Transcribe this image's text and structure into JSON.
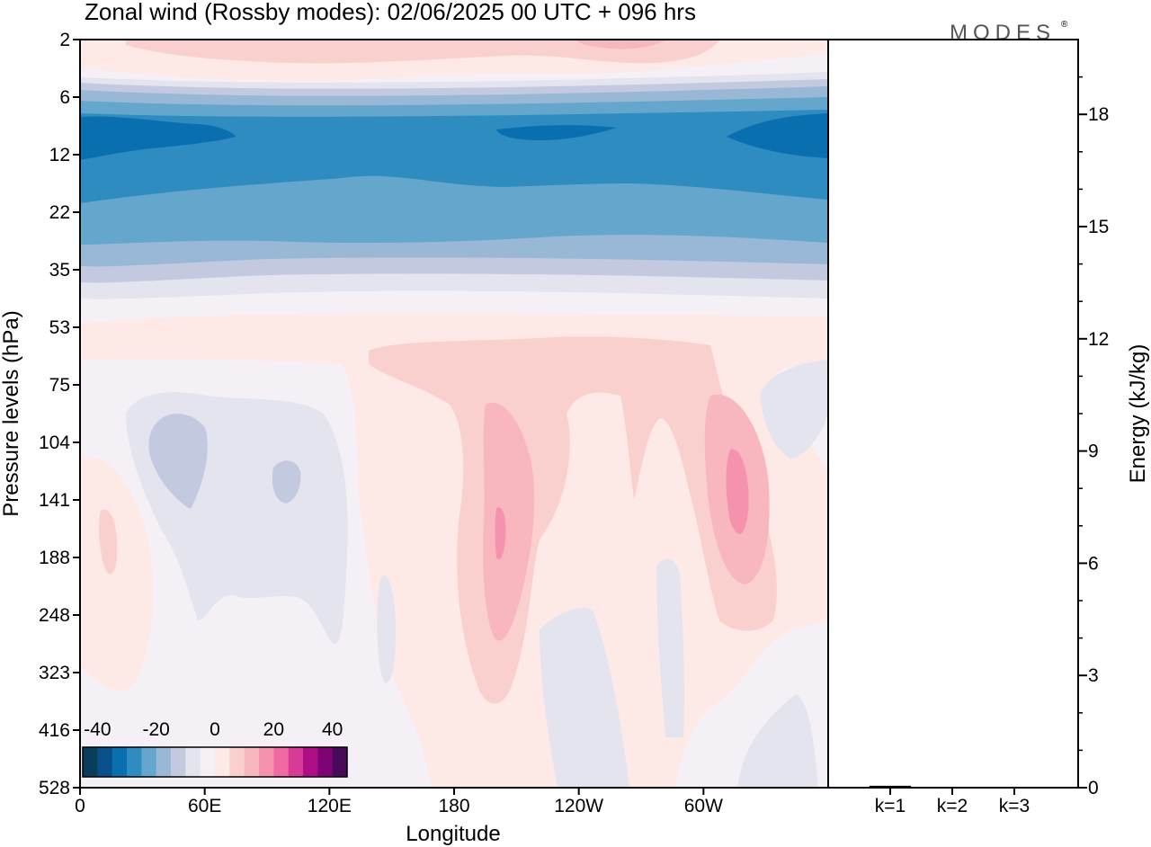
{
  "chart_data": {
    "type": "contour",
    "title": "Zonal wind (Rossby modes):  02/06/2025  00 UTC  + 096 hrs",
    "logo": "MODES",
    "logo_mark": "®",
    "xlabel": "Longitude",
    "ylabel": "Pressure levels (hPa)",
    "x_ticks": [
      "0",
      "60E",
      "120E",
      "180",
      "120W",
      "60W"
    ],
    "y_ticks": [
      "2",
      "6",
      "12",
      "22",
      "35",
      "53",
      "75",
      "104",
      "141",
      "188",
      "248",
      "323",
      "416",
      "528"
    ],
    "colorbar": {
      "ticks": [
        "-40",
        "-20",
        "0",
        "20",
        "40"
      ],
      "levels": [
        -45,
        -40,
        -35,
        -30,
        -25,
        -20,
        -15,
        -10,
        -5,
        0,
        5,
        10,
        15,
        20,
        25,
        30,
        35,
        40,
        45
      ],
      "colors": [
        "#083d5c",
        "#07508a",
        "#0a6fae",
        "#2f8cc1",
        "#64a6cc",
        "#98b8d6",
        "#c3cae0",
        "#e4e4ef",
        "#f5f0f6",
        "#fde9e6",
        "#fad0cf",
        "#f8b6be",
        "#f593ae",
        "#ef6aa2",
        "#d83a97",
        "#ae0f86",
        "#7e0475",
        "#4a0a5c"
      ]
    },
    "energy_panel": {
      "ylabel": "Energy (kJ/kg)",
      "y_ticks": [
        "0",
        "3",
        "6",
        "9",
        "12",
        "15",
        "18"
      ],
      "ylim": [
        0,
        20
      ],
      "categories": [
        "k=1",
        "k=2",
        "k=3"
      ],
      "values": [
        0.05,
        0.02,
        0.01
      ]
    }
  }
}
